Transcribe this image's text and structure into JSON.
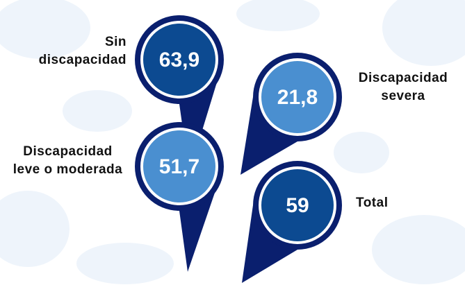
{
  "items": [
    {
      "label": "Sin discapacidad",
      "value": 63.9,
      "value_label": "63,9"
    },
    {
      "label": "Discapacidad severa",
      "value": 21.8,
      "value_label": "21,8"
    },
    {
      "label": "Discapacidad leve o moderada",
      "value": 51.7,
      "value_label": "51,7"
    },
    {
      "label": "Total",
      "value": 59,
      "value_label": "59"
    }
  ]
}
